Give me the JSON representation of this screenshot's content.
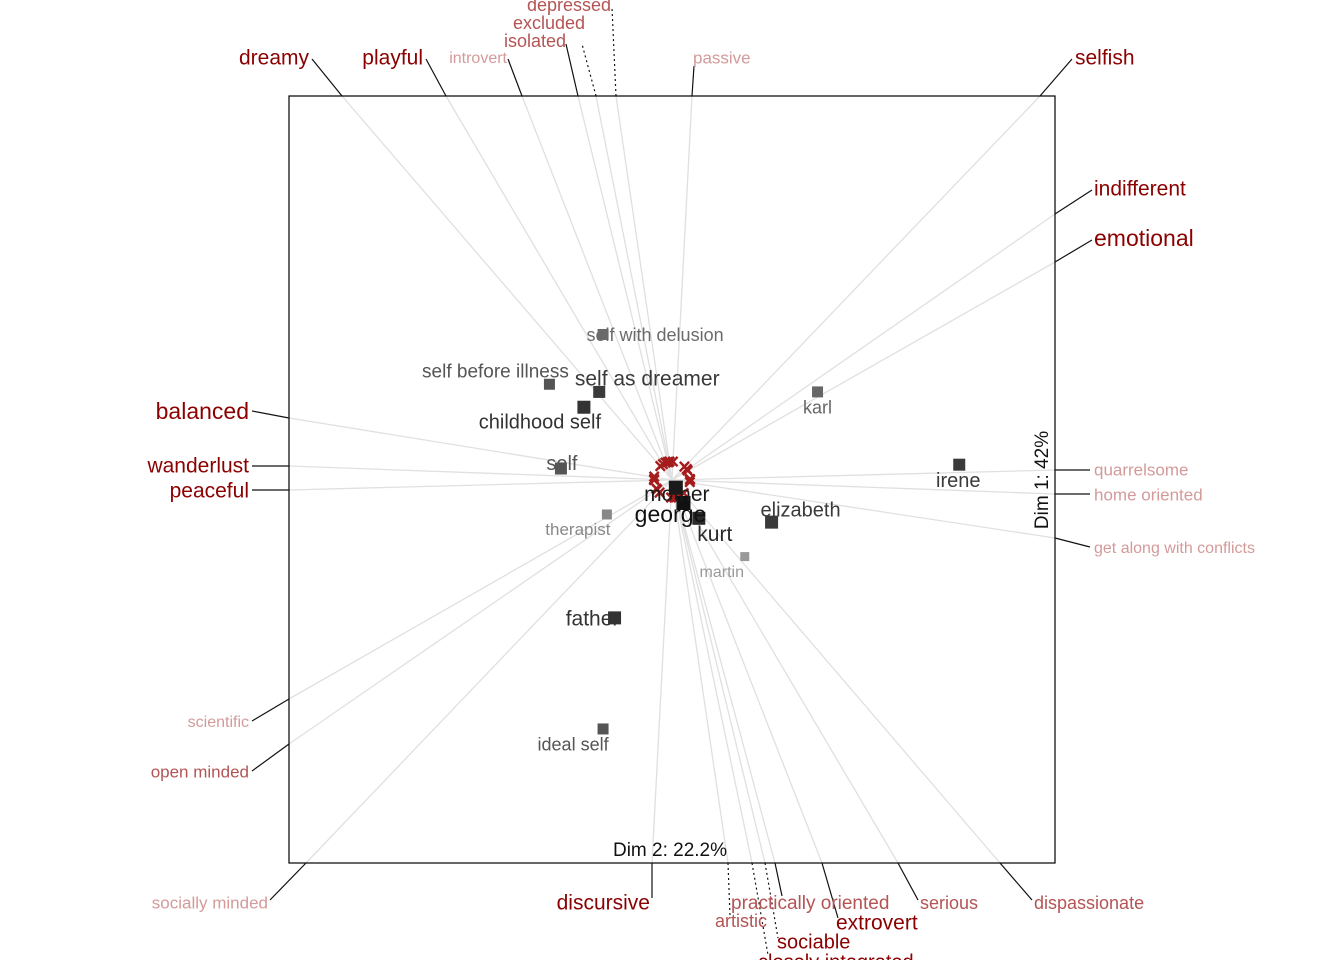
{
  "chart_data": {
    "type": "scatter",
    "subtype": "biplot",
    "title": "",
    "xlabel": "Dim 2: 22.2%",
    "ylabel": "Dim 1: 42%",
    "grid": false,
    "legend": "none",
    "colors": {
      "element": "#3a3a3a",
      "construct_strong": "#8b0000",
      "construct_weak": "#d49a9a",
      "ray": "#e0e0e0",
      "vector_marker": "#a51c1c"
    },
    "elements": [
      {
        "name": "self with delusion",
        "x": -0.18,
        "y": 0.38,
        "shade": "#6a6a6a",
        "size": 11,
        "font": 18
      },
      {
        "name": "self before illness",
        "x": -0.32,
        "y": 0.25,
        "shade": "#555555",
        "size": 11,
        "font": 19
      },
      {
        "name": "self as dreamer",
        "x": -0.19,
        "y": 0.23,
        "shade": "#3a3a3a",
        "size": 12,
        "font": 21
      },
      {
        "name": "childhood self",
        "x": -0.23,
        "y": 0.19,
        "shade": "#333333",
        "size": 13,
        "font": 20
      },
      {
        "name": "karl",
        "x": 0.38,
        "y": 0.23,
        "shade": "#666666",
        "size": 11,
        "font": 18
      },
      {
        "name": "self",
        "x": -0.29,
        "y": 0.03,
        "shade": "#555555",
        "size": 12,
        "font": 20
      },
      {
        "name": "irene",
        "x": 0.75,
        "y": 0.04,
        "shade": "#3a3a3a",
        "size": 12,
        "font": 20
      },
      {
        "name": "mother",
        "x": 0.01,
        "y": -0.02,
        "shade": "#1a1a1a",
        "size": 14,
        "font": 21
      },
      {
        "name": "george",
        "x": 0.03,
        "y": -0.06,
        "shade": "#111111",
        "size": 14,
        "font": 23
      },
      {
        "name": "kurt",
        "x": 0.07,
        "y": -0.1,
        "shade": "#2a2a2a",
        "size": 13,
        "font": 21
      },
      {
        "name": "elizabeth",
        "x": 0.26,
        "y": -0.11,
        "shade": "#3a3a3a",
        "size": 13,
        "font": 20
      },
      {
        "name": "therapist",
        "x": -0.17,
        "y": -0.09,
        "shade": "#888888",
        "size": 10,
        "font": 17
      },
      {
        "name": "martin",
        "x": 0.19,
        "y": -0.2,
        "shade": "#999999",
        "size": 9,
        "font": 16
      },
      {
        "name": "father",
        "x": -0.15,
        "y": -0.36,
        "shade": "#333333",
        "size": 13,
        "font": 21
      },
      {
        "name": "ideal self",
        "x": -0.18,
        "y": -0.65,
        "shade": "#555555",
        "size": 11,
        "font": 18
      }
    ],
    "constructs": [
      {
        "name": "dreamy",
        "shade": "strong",
        "font": 21
      },
      {
        "name": "playful",
        "shade": "strong",
        "font": 21
      },
      {
        "name": "introvert",
        "shade": "weak",
        "font": 16
      },
      {
        "name": "isolated",
        "shade": "medium",
        "font": 18
      },
      {
        "name": "excluded",
        "shade": "medium",
        "font": 18
      },
      {
        "name": "depressed",
        "shade": "medium",
        "font": 18
      },
      {
        "name": "passive",
        "shade": "weak",
        "font": 17
      },
      {
        "name": "selfish",
        "shade": "strong",
        "font": 21
      },
      {
        "name": "indifferent",
        "shade": "strong",
        "font": 21
      },
      {
        "name": "emotional",
        "shade": "strong",
        "font": 23
      },
      {
        "name": "quarrelsome",
        "shade": "weak",
        "font": 17
      },
      {
        "name": "home oriented",
        "shade": "weak",
        "font": 17
      },
      {
        "name": "get along with conflicts",
        "shade": "weak",
        "font": 16
      },
      {
        "name": "dispassionate",
        "shade": "medium",
        "font": 18
      },
      {
        "name": "serious",
        "shade": "medium",
        "font": 18
      },
      {
        "name": "extrovert",
        "shade": "strong",
        "font": 21
      },
      {
        "name": "practically oriented",
        "shade": "medium",
        "font": 19
      },
      {
        "name": "sociable",
        "shade": "strong",
        "font": 20
      },
      {
        "name": "closely integrated",
        "shade": "strong",
        "font": 20
      },
      {
        "name": "artistic",
        "shade": "medium",
        "font": 18
      },
      {
        "name": "discursive",
        "shade": "strong",
        "font": 21
      },
      {
        "name": "socially minded",
        "shade": "weak",
        "font": 17
      },
      {
        "name": "open minded",
        "shade": "medium",
        "font": 17
      },
      {
        "name": "scientific",
        "shade": "weak",
        "font": 16
      },
      {
        "name": "peaceful",
        "shade": "strong",
        "font": 21
      },
      {
        "name": "wanderlust",
        "shade": "strong",
        "font": 21
      },
      {
        "name": "balanced",
        "shade": "strong",
        "font": 23
      }
    ]
  }
}
